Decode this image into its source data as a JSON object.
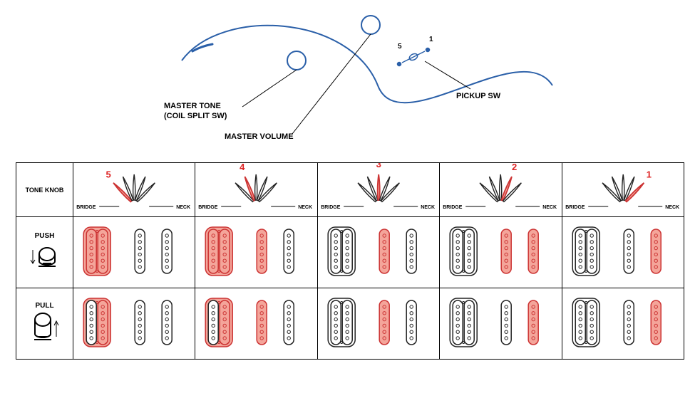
{
  "colors": {
    "outline_blue": "#2a5fa8",
    "blade_stroke": "#222",
    "blade_fill": "#fff",
    "blade_active_fill": "#f4a59a",
    "blade_active_stroke": "#c33",
    "pu_stroke": "#222",
    "pu_fill": "#fff",
    "pu_active_fill": "#f4a59a",
    "pu_active_stroke": "#c33",
    "pole_fill": "#fff",
    "pole_active_fill": "#f4a59a"
  },
  "top": {
    "master_tone_line1": "MASTER TONE",
    "master_tone_line2": "(COIL SPLIT SW)",
    "master_volume": "MASTER VOLUME",
    "pickup_sw": "PICKUP SW",
    "sw_1": "1",
    "sw_5": "5"
  },
  "table": {
    "header_label": "TONE KNOB",
    "push_label": "PUSH",
    "pull_label": "PULL",
    "bridge_txt": "BRIDGE",
    "neck_txt": "NECK",
    "positions": [
      {
        "num": "5",
        "active_blade": 0,
        "push": {
          "hb": [
            true,
            true
          ],
          "sc1": false,
          "sc2": false
        },
        "pull": {
          "hb": [
            false,
            true
          ],
          "sc1": false,
          "sc2": false
        }
      },
      {
        "num": "4",
        "active_blade": 1,
        "push": {
          "hb": [
            true,
            true
          ],
          "sc1": true,
          "sc2": false
        },
        "pull": {
          "hb": [
            false,
            true
          ],
          "sc1": true,
          "sc2": false
        }
      },
      {
        "num": "3",
        "active_blade": 2,
        "push": {
          "hb": [
            false,
            false
          ],
          "sc1": true,
          "sc2": false
        },
        "pull": {
          "hb": [
            false,
            false
          ],
          "sc1": true,
          "sc2": false
        }
      },
      {
        "num": "2",
        "active_blade": 3,
        "push": {
          "hb": [
            false,
            false
          ],
          "sc1": true,
          "sc2": true
        },
        "pull": {
          "hb": [
            false,
            false
          ],
          "sc1": false,
          "sc2": true
        }
      },
      {
        "num": "1",
        "active_blade": 4,
        "push": {
          "hb": [
            false,
            false
          ],
          "sc1": false,
          "sc2": true
        },
        "pull": {
          "hb": [
            false,
            false
          ],
          "sc1": false,
          "sc2": true
        }
      }
    ]
  }
}
